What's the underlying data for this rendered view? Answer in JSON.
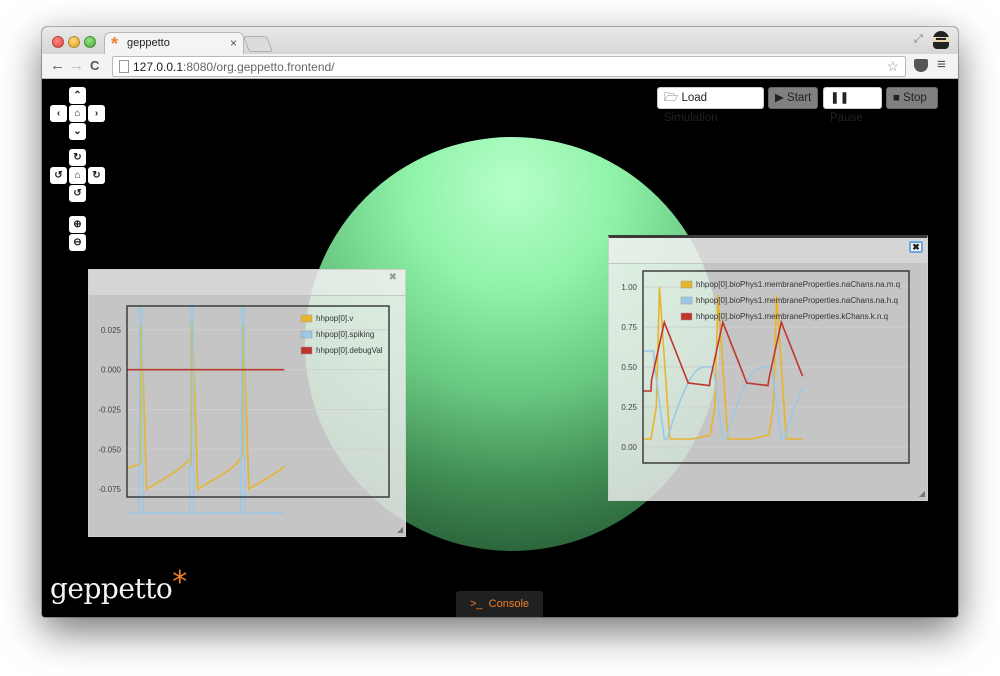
{
  "browser": {
    "tab_title": "geppetto",
    "tab_close": "×",
    "url_host": "127.0.0.1",
    "url_rest": ":8080/org.geppetto.frontend/"
  },
  "controls": {
    "pan_up": "⌃",
    "pan_left": "‹",
    "pan_home": "⌂",
    "pan_right": "›",
    "pan_down": "⌄",
    "rot_up": "↻",
    "rot_left": "↺",
    "rot_home": "⌂",
    "rot_right": "↻",
    "rot_down": "↺",
    "zoom_in": "⊕",
    "zoom_out": "⊖"
  },
  "sim_buttons": {
    "load_label": "Load Simulation",
    "start_label": "Start",
    "pause_label": "Pause",
    "stop_label": "Stop"
  },
  "logo": {
    "text": "geppetto",
    "asterisk": "*"
  },
  "console": {
    "label": "Console",
    "prompt": ">_"
  },
  "chart_data": [
    {
      "type": "line",
      "y_ticks": [
        "0.025",
        "0.000",
        "-0.025",
        "-0.050",
        "-0.075"
      ],
      "ylim": [
        -0.08,
        0.04
      ],
      "series": [
        {
          "name": "hhpop[0].v",
          "color": "#e6b52c"
        },
        {
          "name": "hhpop[0].spiking",
          "color": "#9cc8e6"
        },
        {
          "name": "hhpop[0].debugVal",
          "color": "#c0352b"
        }
      ]
    },
    {
      "type": "line",
      "y_ticks": [
        "1.00",
        "0.75",
        "0.50",
        "0.25",
        "0.00"
      ],
      "ylim": [
        -0.1,
        1.1
      ],
      "series": [
        {
          "name": "hhpop[0].bioPhys1.membraneProperties.naChans.na.m.q",
          "color": "#e6b52c"
        },
        {
          "name": "hhpop[0].bioPhys1.membraneProperties.naChans.na.h.q",
          "color": "#9cc8e6"
        },
        {
          "name": "hhpop[0].bioPhys1.membraneProperties.kChans.k.n.q",
          "color": "#c0352b"
        }
      ]
    }
  ]
}
